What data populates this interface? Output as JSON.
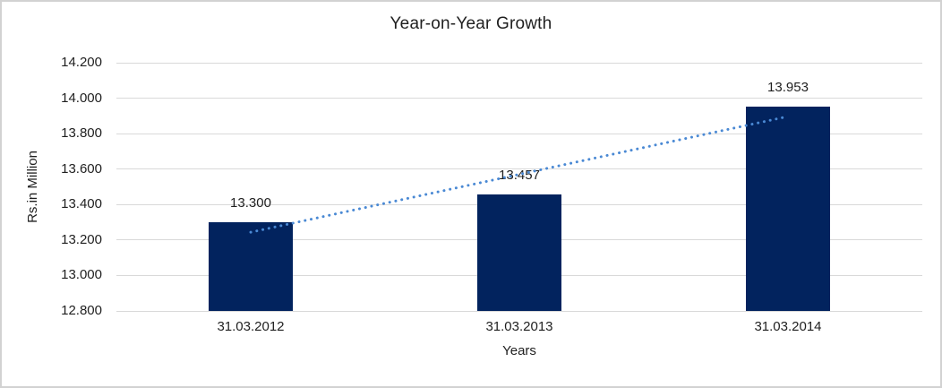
{
  "chart_data": {
    "type": "bar",
    "title": "Year-on-Year Growth",
    "categories": [
      "31.03.2012",
      "31.03.2013",
      "31.03.2014"
    ],
    "values": [
      13300,
      13457,
      13953
    ],
    "data_labels": [
      "13.300",
      "13.457",
      "13.953"
    ],
    "xlabel": "Years",
    "ylabel": "Rs.in Million",
    "ylim": [
      12800,
      14200
    ],
    "ytick_values": [
      12800,
      13000,
      13200,
      13400,
      13600,
      13800,
      14000,
      14200
    ],
    "ytick_labels": [
      "12.800",
      "13.000",
      "13.200",
      "13.400",
      "13.600",
      "13.800",
      "14.000",
      "14.200"
    ],
    "grid": true,
    "legend": "none",
    "bar_color": "#02235e",
    "gridline_color": "#d9d9d9",
    "trendline": {
      "style": "dotted",
      "color": "#4a89d4",
      "start_value": 13244,
      "end_value": 13897
    }
  }
}
